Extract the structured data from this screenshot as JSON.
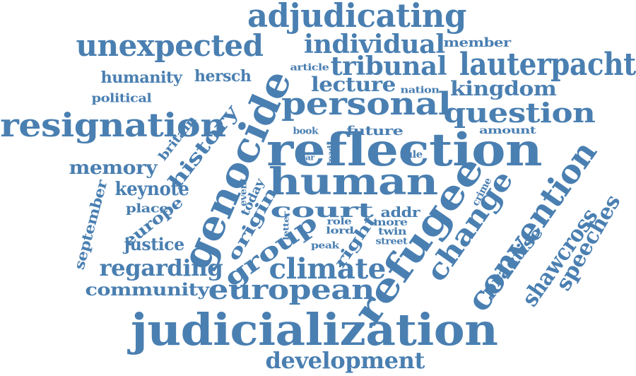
{
  "cloud": {
    "color": "#4A7FB1",
    "words": [
      "adjudicating",
      "unexpected",
      "individual",
      "member",
      "tribunal",
      "lauterpacht",
      "humanity",
      "hersch",
      "article",
      "lecture",
      "nation",
      "kingdom",
      "political",
      "resignation",
      "genocide",
      "personal",
      "question",
      "britain",
      "history",
      "book",
      "future",
      "amount",
      "reflection",
      "memory",
      "year",
      "road",
      "rule",
      "keynote",
      "human",
      "september",
      "event",
      "today",
      "crime",
      "place",
      "europe",
      "origin",
      "court",
      "addr",
      "letter",
      "refugee",
      "change",
      "convention",
      "shawcross",
      "speeches",
      "role",
      "more",
      "right",
      "lord",
      "twin",
      "justice",
      "street",
      "peak",
      "group",
      "practise",
      "regarding",
      "climate",
      "community",
      "european",
      "judicialization",
      "development"
    ]
  }
}
